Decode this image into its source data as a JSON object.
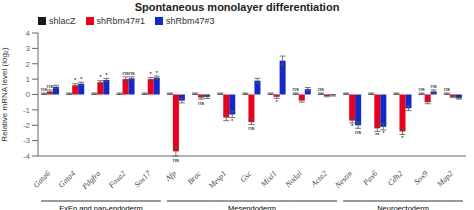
{
  "chart_data": {
    "type": "bar",
    "title": "Spontaneous monolayer differentiation",
    "y_label": "Relative mRNA level (log₂)",
    "categories": [
      "Gata6",
      "Gata4",
      "Pdgfra",
      "Foxa2",
      "Sox17",
      "Afp",
      "Brac",
      "Mesp1",
      "Gsc",
      "Mixl1",
      "Nodal",
      "Acta2",
      "Nestin",
      "Pax6",
      "Cdh2",
      "Sox9",
      "Map2"
    ],
    "series": [
      {
        "name": "shlacZ",
        "color": "#1a1a1a",
        "values": [
          0.05,
          0.05,
          0.05,
          0.05,
          0.05,
          0.05,
          0.05,
          0.05,
          0.05,
          0.05,
          0.05,
          0.05,
          0.05,
          0.05,
          0.05,
          0.05,
          0.05
        ],
        "errors": [
          0.05,
          0.05,
          0.05,
          0.05,
          0.05,
          0.05,
          0.05,
          0.05,
          0.05,
          0.05,
          0.05,
          0.05,
          0.05,
          0.05,
          0.05,
          0.05,
          0.05
        ]
      },
      {
        "name": "shRbm47#1",
        "color": "#e8001c",
        "values": [
          0.2,
          0.6,
          0.8,
          1.0,
          1.0,
          -3.7,
          -0.2,
          -1.5,
          -1.8,
          -0.15,
          -0.4,
          -0.1,
          -1.7,
          -2.2,
          -2.4,
          -0.5,
          -0.15
        ],
        "errors": [
          0.1,
          0.1,
          0.1,
          0.15,
          0.1,
          0.3,
          0.1,
          0.2,
          0.15,
          0.1,
          0.1,
          0.05,
          0.15,
          0.2,
          0.2,
          0.1,
          0.05
        ]
      },
      {
        "name": "shRbm47#3",
        "color": "#1428c8",
        "values": [
          0.5,
          0.7,
          0.95,
          1.05,
          1.1,
          -0.4,
          -0.15,
          -1.3,
          0.9,
          2.2,
          0.35,
          -0.05,
          -2.0,
          -2.1,
          -0.9,
          0.2,
          -0.25
        ],
        "errors": [
          0.1,
          0.1,
          0.1,
          0.1,
          0.1,
          0.15,
          0.1,
          0.2,
          0.15,
          0.3,
          0.1,
          0.05,
          0.2,
          0.2,
          0.15,
          0.1,
          0.05
        ]
      }
    ],
    "ylim": [
      -4,
      4
    ],
    "yticks": [
      -4,
      -3,
      -2,
      -1,
      0,
      1,
      2,
      3,
      4
    ],
    "grid": false,
    "legend": "upper left",
    "groups": [
      {
        "label": "ExEn and pan-endoderm",
        "categories": [
          "Gata6",
          "Gata4",
          "Pdgfra",
          "Foxa2",
          "Sox17"
        ]
      },
      {
        "label": "Mesendoderm",
        "categories": [
          "Afp",
          "Brac",
          "Mesp1",
          "Gsc",
          "Mixl1",
          "Nodal",
          "Acta2"
        ]
      },
      {
        "label": "Neuroectoderm",
        "categories": [
          "Nestin",
          "Pax6",
          "Cdh2",
          "Sox9",
          "Map2"
        ]
      }
    ],
    "annotations": [
      {
        "category": "Gata6",
        "series": "shlacZ",
        "text": "ns"
      },
      {
        "category": "Gata6",
        "series": "shRbm47#1",
        "text": "ns"
      },
      {
        "category": "Gata4",
        "series": "shRbm47#1",
        "text": "*"
      },
      {
        "category": "Gata4",
        "series": "shRbm47#3",
        "text": "*"
      },
      {
        "category": "Pdgfra",
        "series": "shRbm47#1",
        "text": "*"
      },
      {
        "category": "Pdgfra",
        "series": "shRbm47#3",
        "text": "*"
      },
      {
        "category": "Foxa2",
        "series": "shRbm47#1",
        "text": "ns"
      },
      {
        "category": "Foxa2",
        "series": "shRbm47#3",
        "text": "ns"
      },
      {
        "category": "Sox17",
        "series": "shRbm47#1",
        "text": "*"
      },
      {
        "category": "Sox17",
        "series": "shRbm47#3",
        "text": "*"
      },
      {
        "category": "Afp",
        "series": "shRbm47#1",
        "text": "ns"
      },
      {
        "category": "Brac",
        "series": "shRbm47#1",
        "text": "ns"
      },
      {
        "category": "Mesp1",
        "series": "shRbm47#3",
        "text": "*"
      },
      {
        "category": "Gsc",
        "series": "shRbm47#1",
        "text": "ns"
      },
      {
        "category": "Mixl1",
        "series": "shRbm47#1",
        "text": "*"
      },
      {
        "category": "Nodal",
        "series": "shlacZ",
        "text": "ns"
      },
      {
        "category": "Acta2",
        "series": "shlacZ",
        "text": "ns"
      },
      {
        "category": "Nestin",
        "series": "shRbm47#1",
        "text": "*"
      },
      {
        "category": "Nestin",
        "series": "shRbm47#3",
        "text": "ns"
      },
      {
        "category": "Pax6",
        "series": "shRbm47#1",
        "text": "**"
      },
      {
        "category": "Pax6",
        "series": "shRbm47#3",
        "text": "*"
      },
      {
        "category": "Cdh2",
        "series": "shRbm47#1",
        "text": "*"
      },
      {
        "category": "Sox9",
        "series": "shlacZ",
        "text": "ns"
      },
      {
        "category": "Sox9",
        "series": "shRbm47#3",
        "text": "ns"
      },
      {
        "category": "Map2",
        "series": "shlacZ",
        "text": "ns"
      }
    ]
  }
}
